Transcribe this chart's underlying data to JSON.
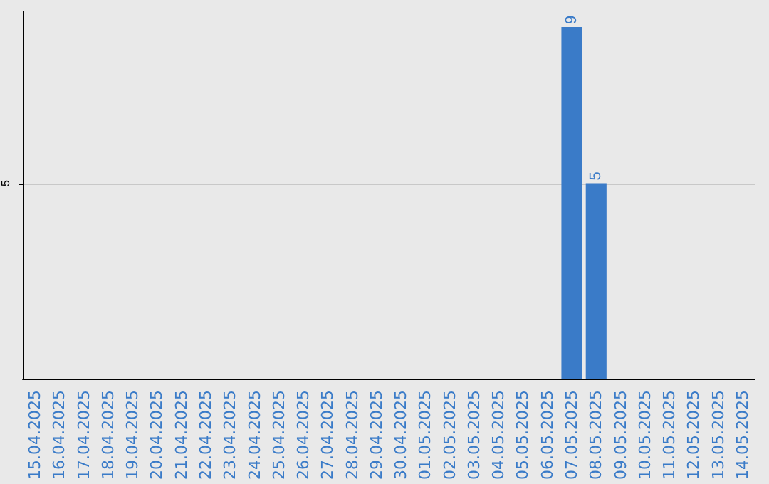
{
  "chart_data": {
    "type": "bar",
    "categories": [
      "15.04.2025",
      "16.04.2025",
      "17.04.2025",
      "18.04.2025",
      "19.04.2025",
      "20.04.2025",
      "21.04.2025",
      "22.04.2025",
      "23.04.2025",
      "24.04.2025",
      "25.04.2025",
      "26.04.2025",
      "27.04.2025",
      "28.04.2025",
      "29.04.2025",
      "30.04.2025",
      "01.05.2025",
      "02.05.2025",
      "03.05.2025",
      "04.05.2025",
      "05.05.2025",
      "06.05.2025",
      "07.05.2025",
      "08.05.2025",
      "09.05.2025",
      "10.05.2025",
      "11.05.2025",
      "12.05.2025",
      "13.05.2025",
      "14.05.2025"
    ],
    "values": [
      null,
      null,
      null,
      null,
      null,
      null,
      null,
      null,
      null,
      null,
      null,
      null,
      null,
      null,
      null,
      null,
      null,
      null,
      null,
      null,
      null,
      null,
      9,
      5,
      null,
      null,
      null,
      null,
      null,
      null
    ],
    "color": "#3a7bc8",
    "ylim": [
      0,
      9.4
    ],
    "yticks": [
      5
    ],
    "grid": "y",
    "data_labels": true
  }
}
